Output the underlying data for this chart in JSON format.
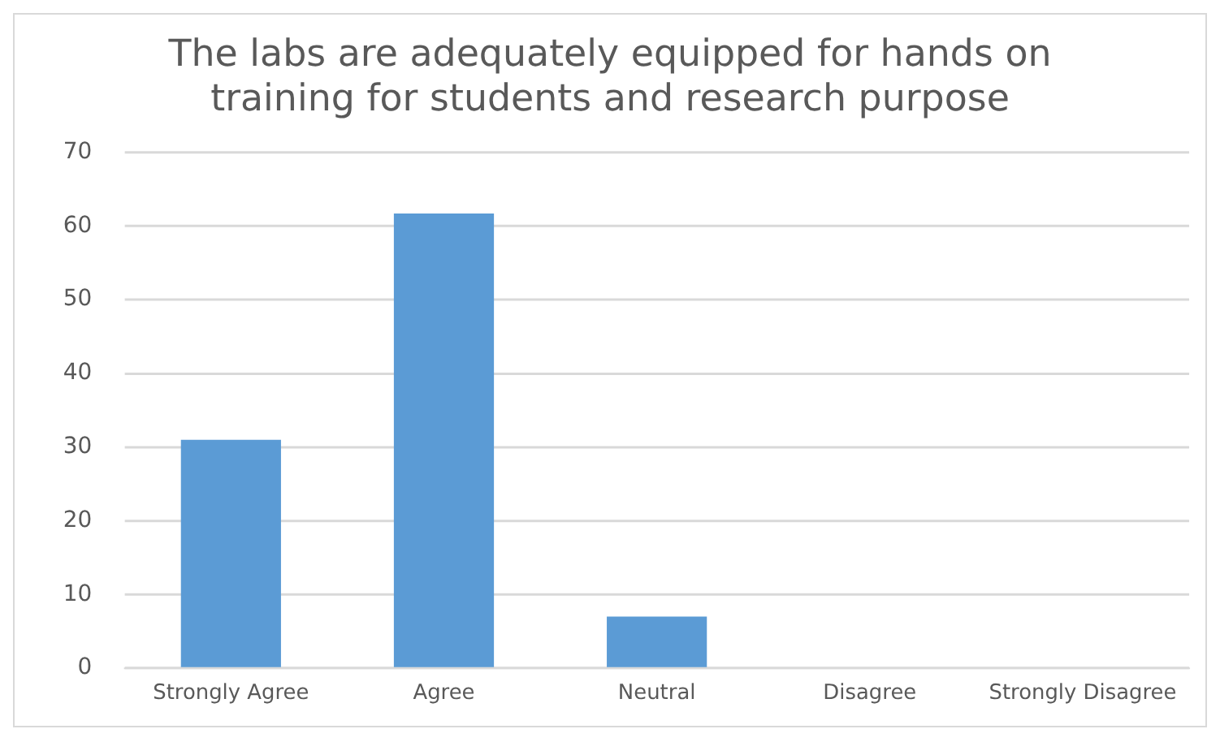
{
  "chart_data": {
    "type": "bar",
    "title": [
      "The labs are adequately equipped for hands on",
      "training for students and research purpose"
    ],
    "categories": [
      "Strongly Agree",
      "Agree",
      "Neutral",
      "Disagree",
      "Strongly Disagree"
    ],
    "values": [
      31,
      61.7,
      7,
      0,
      0
    ],
    "color": "#5b9bd5",
    "ylim": [
      0,
      70
    ],
    "yticks": [
      0,
      10,
      20,
      30,
      40,
      50,
      60,
      70
    ],
    "grid": "y",
    "legend": false
  }
}
